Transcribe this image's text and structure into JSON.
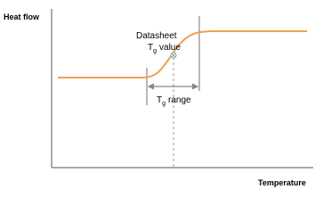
{
  "axes": {
    "y_label": "Heat flow",
    "x_label": "Temperature"
  },
  "annotations": {
    "datasheet_label": {
      "line1": "Datasheet",
      "symbol": "T",
      "subscript": "g",
      "word": "value"
    },
    "range_label": {
      "symbol": "T",
      "subscript": "g",
      "word": "range"
    }
  }
}
